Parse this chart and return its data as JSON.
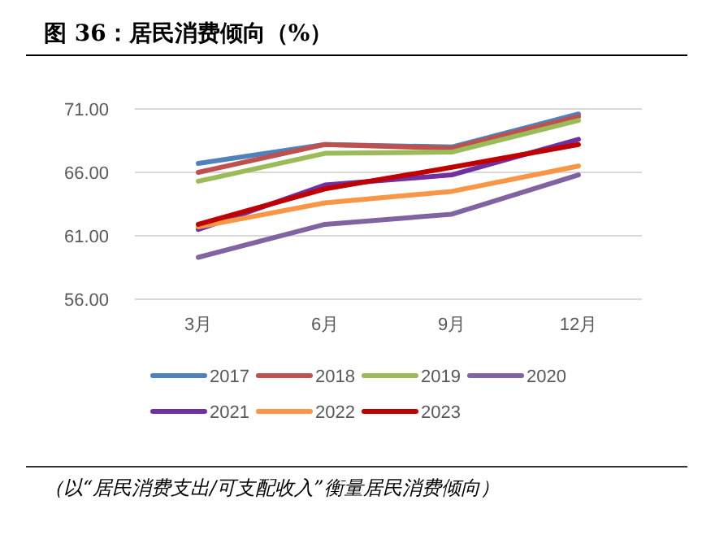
{
  "chart_data": {
    "type": "line",
    "title": "图 36：居民消费倾向（%）",
    "categories": [
      "3月",
      "6月",
      "9月",
      "12月"
    ],
    "series": [
      {
        "name": "2017",
        "color": "#4f81bd",
        "values": [
          66.7,
          68.2,
          68.0,
          70.6
        ]
      },
      {
        "name": "2018",
        "color": "#c0504d",
        "values": [
          66.0,
          68.2,
          67.9,
          70.4
        ]
      },
      {
        "name": "2019",
        "color": "#9bbb59",
        "values": [
          65.3,
          67.5,
          67.6,
          70.1
        ]
      },
      {
        "name": "2020",
        "color": "#8064a2",
        "values": [
          59.3,
          61.9,
          62.7,
          65.8
        ]
      },
      {
        "name": "2021",
        "color": "#7030a0",
        "values": [
          61.5,
          65.0,
          65.8,
          68.6
        ]
      },
      {
        "name": "2022",
        "color": "#f79646",
        "values": [
          61.7,
          63.6,
          64.5,
          66.5
        ]
      },
      {
        "name": "2023",
        "color": "#c00000",
        "values": [
          61.9,
          64.7,
          66.4,
          68.2
        ]
      }
    ],
    "ylim": [
      56,
      71
    ],
    "yticks": [
      {
        "value": 56,
        "label": "56.00"
      },
      {
        "value": 61,
        "label": "61.00"
      },
      {
        "value": 66,
        "label": "66.00"
      },
      {
        "value": 71,
        "label": "71.00"
      }
    ],
    "grid": "y",
    "legend": "bottom",
    "marker": "none",
    "line_style": "solid",
    "annotations": [
      "（以“居民消费支出/可支配收入”衡量居民消费倾向）"
    ]
  }
}
